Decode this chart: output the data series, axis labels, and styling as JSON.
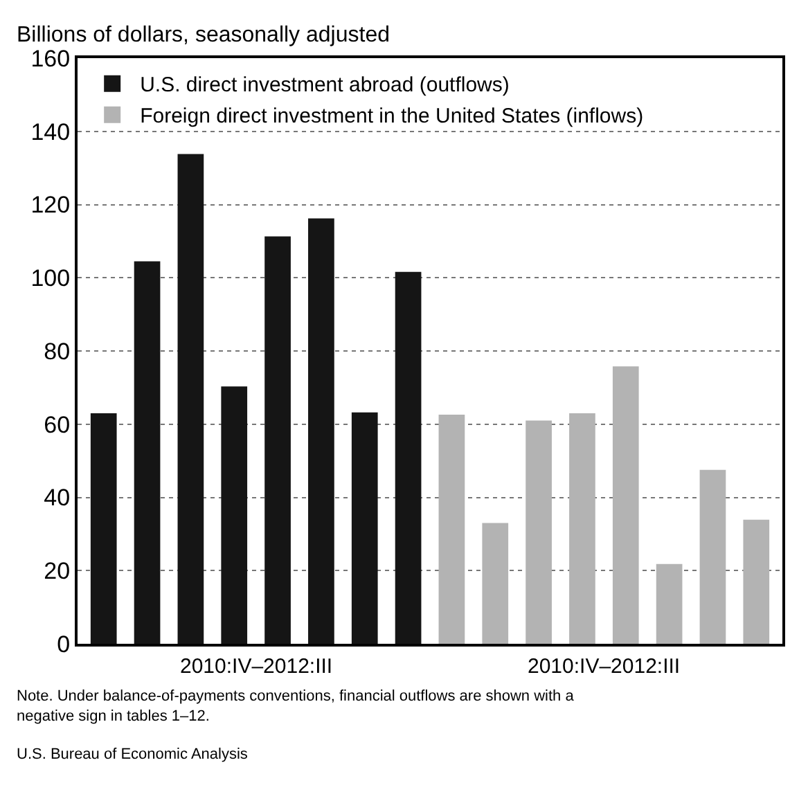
{
  "chart_data": {
    "type": "bar",
    "ylabel": "Billions of dollars, seasonally adjusted",
    "categories": [
      null,
      null,
      null,
      null,
      null,
      null,
      null,
      null,
      null,
      null,
      null,
      null,
      null,
      null,
      null,
      null
    ],
    "series": [
      {
        "name": "U.S. direct investment abroad (outflows)",
        "color": "#151515",
        "values": [
          63,
          104.5,
          133.8,
          70.3,
          111.3,
          116.2,
          63.2,
          101.6,
          null,
          null,
          null,
          null,
          null,
          null,
          null,
          null
        ]
      },
      {
        "name": "Foreign direct investment in the United States (inflows)",
        "color": "#b3b3b3",
        "values": [
          null,
          null,
          null,
          null,
          null,
          null,
          null,
          null,
          62.6,
          33,
          61,
          63,
          75.8,
          21.8,
          47.5,
          33.9
        ]
      }
    ],
    "ylim": [
      0,
      160
    ],
    "yticks": [
      0,
      20,
      40,
      60,
      80,
      100,
      120,
      140,
      160
    ],
    "grid": "y",
    "legend": "top left",
    "annotations": [
      "2010:IV–2012:III",
      "2010:IV–2012:III",
      "Note. Under balance-of-payments conventions, financial outflows are shown with a negative sign in tables 1–12.",
      "U.S. Bureau of Economic Analysis"
    ]
  }
}
